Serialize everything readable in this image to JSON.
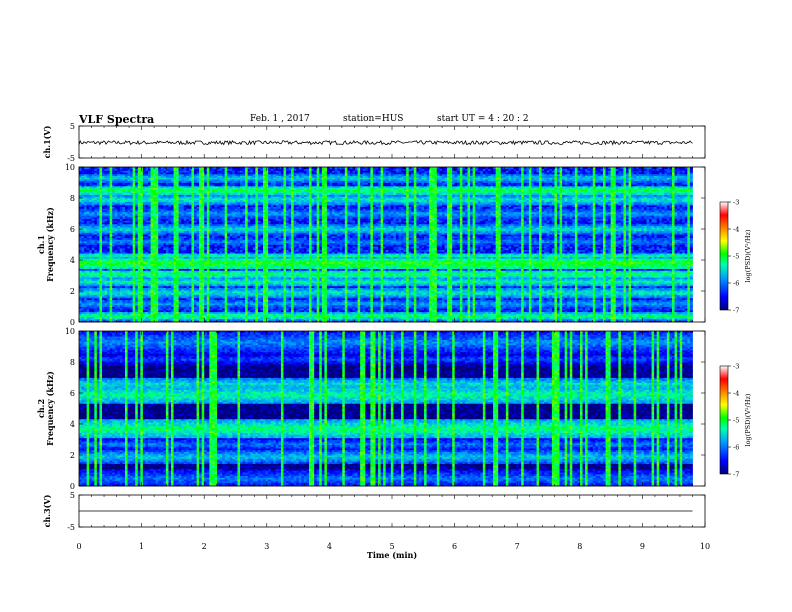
{
  "header": {
    "title": "VLF Spectra",
    "date": "Feb. 1 , 2017",
    "station": "station=HUS",
    "start_ut": "start  UT =   4 : 20 : 2"
  },
  "chart_data": {
    "type": "heatmap",
    "x_axis": {
      "label": "Time  (min)",
      "range": [
        0,
        10
      ],
      "ticks": [
        "0",
        "1",
        "2",
        "3",
        "4",
        "5",
        "6",
        "7",
        "8",
        "9",
        "10"
      ]
    },
    "panels": [
      {
        "id": "ch1-waveform",
        "kind": "line",
        "ylabel": "ch.1(V)",
        "yrange": [
          -5,
          5
        ],
        "yticks": [
          "5",
          "-5"
        ],
        "signal_level": -0.2,
        "signal_amplitude": 0.6,
        "data_end_min": 9.8
      },
      {
        "id": "ch1-spectrogram",
        "kind": "spectrogram",
        "ylabel": "ch.1\nFrequency (kHz)",
        "yrange": [
          0,
          10
        ],
        "yticks": [
          "0",
          "2",
          "4",
          "6",
          "8",
          "10"
        ],
        "data_end_min": 9.8,
        "bands_khz": [
          {
            "f": 0.4,
            "w": 0.25,
            "level": -5.2
          },
          {
            "f": 1.2,
            "w": 0.3,
            "level": -5.8
          },
          {
            "f": 1.9,
            "w": 0.3,
            "level": -5.4
          },
          {
            "f": 2.6,
            "w": 0.25,
            "level": -5.3
          },
          {
            "f": 3.1,
            "w": 0.25,
            "level": -5.1
          },
          {
            "f": 3.8,
            "w": 0.35,
            "level": -4.9
          },
          {
            "f": 4.3,
            "w": 0.2,
            "level": -5.3
          },
          {
            "f": 5.2,
            "w": 0.25,
            "level": -5.9
          },
          {
            "f": 6.0,
            "w": 0.3,
            "level": -5.5
          },
          {
            "f": 7.0,
            "w": 0.3,
            "level": -5.8
          },
          {
            "f": 7.9,
            "w": 0.3,
            "level": -5.4
          },
          {
            "f": 8.5,
            "w": 0.3,
            "level": -5.1
          },
          {
            "f": 9.3,
            "w": 0.3,
            "level": -5.6
          }
        ],
        "background_level": -6.4,
        "colorbar": {
          "label": "log(PSD)(V²/Hz)",
          "range": [
            -7,
            -3
          ],
          "ticks": [
            "-3",
            "-4",
            "-5",
            "-6",
            "-7"
          ]
        }
      },
      {
        "id": "ch2-spectrogram",
        "kind": "spectrogram",
        "ylabel": "ch.2\nFrequency (kHz)",
        "yrange": [
          0,
          10
        ],
        "yticks": [
          "0",
          "2",
          "4",
          "6",
          "8",
          "10"
        ],
        "data_end_min": 9.8,
        "bands_khz": [
          {
            "f": 0.5,
            "w": 0.6,
            "level": -6.0
          },
          {
            "f": 1.9,
            "w": 0.4,
            "level": -5.6
          },
          {
            "f": 2.7,
            "w": 0.4,
            "level": -6.0
          },
          {
            "f": 3.7,
            "w": 0.6,
            "level": -5.2
          },
          {
            "f": 5.9,
            "w": 0.6,
            "level": -5.3
          },
          {
            "f": 6.6,
            "w": 0.4,
            "level": -5.5
          },
          {
            "f": 8.2,
            "w": 0.4,
            "level": -6.2
          },
          {
            "f": 9.3,
            "w": 0.7,
            "level": -5.9
          }
        ],
        "background_level": -7.0,
        "colorbar": {
          "label": "log(PSD)(V²/Hz)",
          "range": [
            -7,
            -3
          ],
          "ticks": [
            "-3",
            "-4",
            "-5",
            "-6",
            "-7"
          ]
        }
      },
      {
        "id": "ch3-waveform",
        "kind": "line",
        "ylabel": "ch.3(V)",
        "yrange": [
          -5,
          5
        ],
        "yticks": [
          "5",
          "-5"
        ],
        "signal_level": 0,
        "signal_amplitude": 0,
        "data_end_min": 9.8
      }
    ],
    "colormap": [
      "#000078",
      "#0000ff",
      "#00a0ff",
      "#00ffaa",
      "#00ff00",
      "#ffff00",
      "#ff8000",
      "#ff0000",
      "#ffffff"
    ],
    "grid": false,
    "legend": "colorbars right of spectrogram panels"
  }
}
